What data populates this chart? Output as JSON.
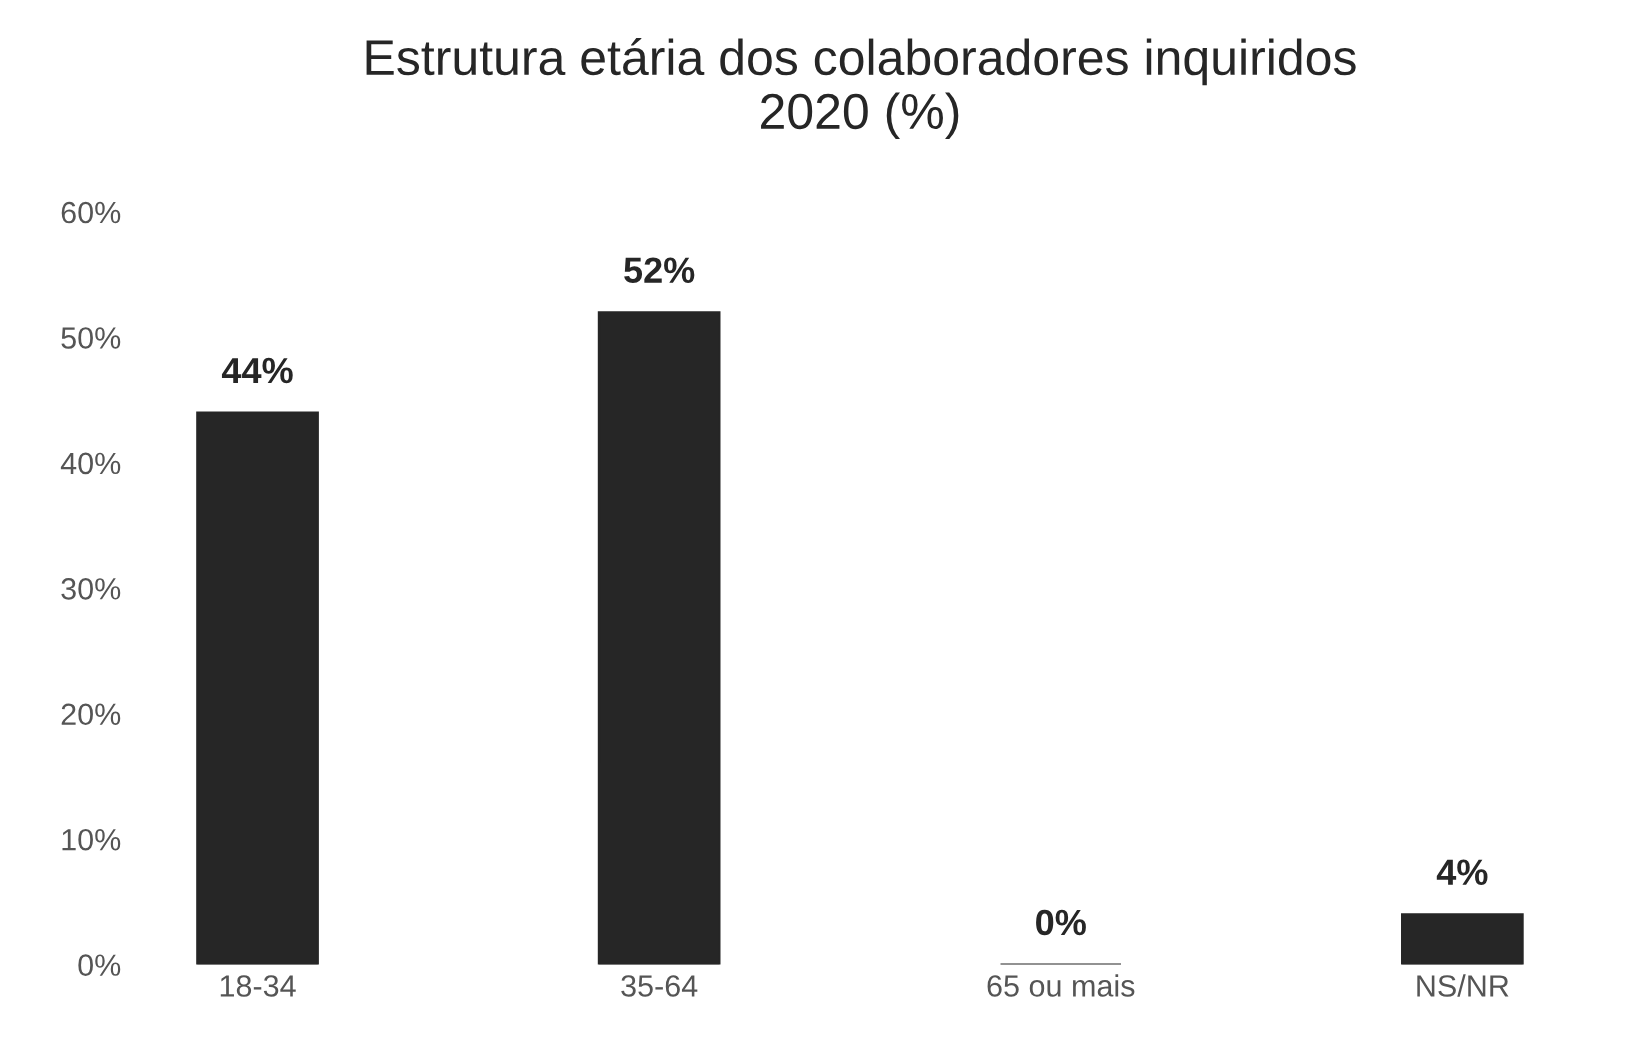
{
  "chart_data": {
    "type": "bar",
    "title": "Estrutura etária dos colaboradores inquiridos\n2020 (%)",
    "categories": [
      "18-34",
      "35-64",
      "65 ou mais",
      "NS/NR"
    ],
    "values": [
      44,
      52,
      0,
      4
    ],
    "value_labels": [
      "44%",
      "52%",
      "0%",
      "4%"
    ],
    "color": "#262626",
    "ylim": [
      0,
      60
    ],
    "yticks": [
      {
        "value": 0,
        "label": "0%"
      },
      {
        "value": 10,
        "label": "10%"
      },
      {
        "value": 20,
        "label": "20%"
      },
      {
        "value": 30,
        "label": "30%"
      },
      {
        "value": 40,
        "label": "40%"
      },
      {
        "value": 50,
        "label": "50%"
      },
      {
        "value": 60,
        "label": "60%"
      }
    ],
    "grid": false,
    "legend": false
  }
}
